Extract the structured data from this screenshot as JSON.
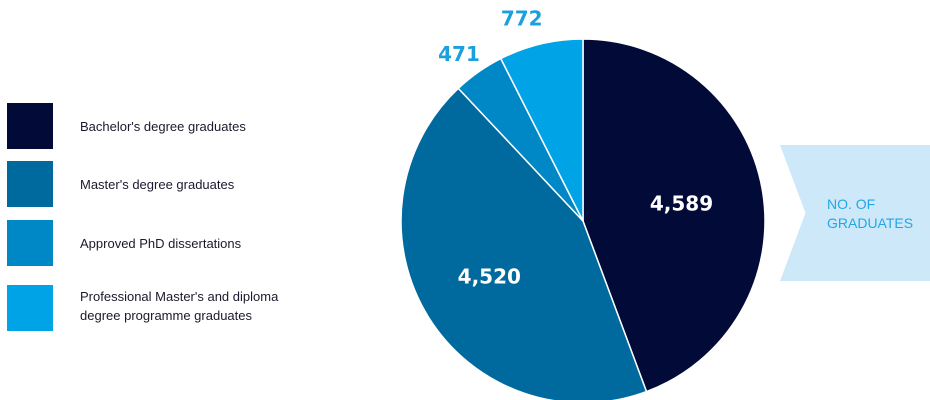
{
  "chart_data": {
    "type": "pie",
    "categories": [
      "Bachelor's degree graduates",
      "Master's degree graduates",
      "Approved PhD dissertations",
      "Professional Master's and diploma degree programme graduates"
    ],
    "values": [
      4589,
      4520,
      471,
      772
    ],
    "labels": [
      "4,589",
      "4,520",
      "471",
      "772"
    ],
    "colors": [
      "#020b38",
      "#006a9e",
      "#0087c6",
      "#00a3e6"
    ],
    "label_colors": [
      "#ffffff",
      "#ffffff",
      "#1ba0df",
      "#1ba0df"
    ],
    "legend_position": "left"
  },
  "legend": {
    "items": [
      {
        "label": "Bachelor's degree graduates",
        "color": "#020b38"
      },
      {
        "label": "Master's degree graduates",
        "color": "#006a9e"
      },
      {
        "label": "Approved PhD dissertations",
        "color": "#0087c6"
      },
      {
        "label": "Professional Master's and diploma\ndegree programme graduates",
        "color": "#00a3e6"
      }
    ]
  },
  "side_label": {
    "text": "NO. OF\nGRADUATES",
    "background": "#cde9f9",
    "color": "#22a6e6"
  }
}
